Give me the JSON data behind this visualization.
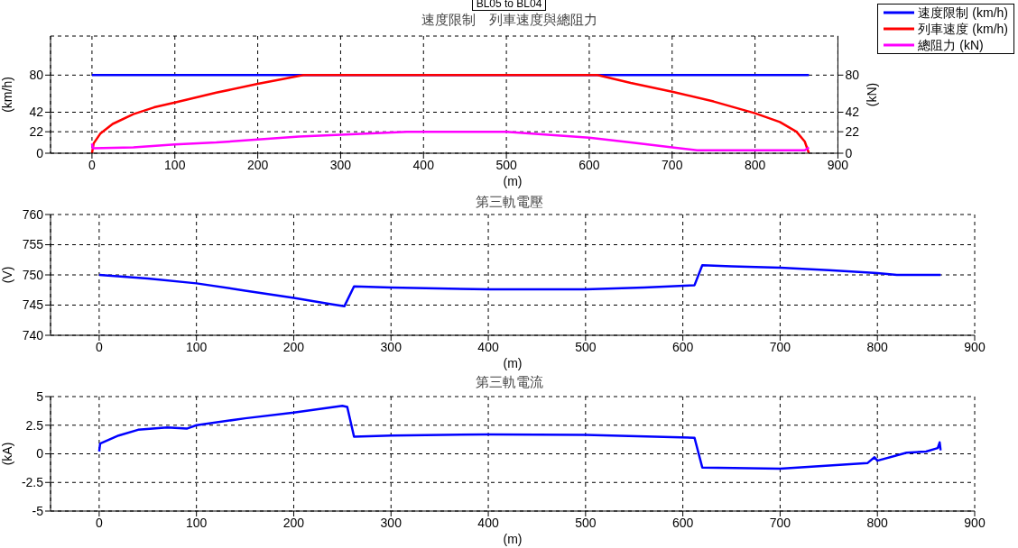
{
  "chart_data": [
    {
      "type": "line",
      "title": "速度限制　列車速度與總阻力",
      "annotations": [
        "BL05 to BL04"
      ],
      "xlabel": "(m)",
      "ylabel": "(km/h)",
      "y2label": "(kN)",
      "xlim": [
        -50,
        900
      ],
      "xticks": [
        0,
        100,
        200,
        300,
        400,
        500,
        600,
        700,
        800,
        900
      ],
      "ylim": [
        0,
        120
      ],
      "yticks": [
        0,
        22,
        42,
        80
      ],
      "y2lim": [
        0,
        120
      ],
      "y2ticks": [
        0,
        22,
        42,
        80
      ],
      "grid": true,
      "legend": "top right",
      "marker": "none",
      "line_style": "solid",
      "series": [
        {
          "name": "速度限制 (km/h)",
          "color": "#0000ff",
          "x": [
            0,
            865
          ],
          "values": [
            80,
            80
          ]
        },
        {
          "name": "列車速度 (km/h)",
          "color": "#ff0000",
          "x": [
            0,
            2,
            10,
            25,
            50,
            75,
            100,
            150,
            200,
            230,
            255,
            610,
            650,
            700,
            750,
            800,
            830,
            850,
            860,
            865
          ],
          "values": [
            0,
            10,
            20,
            30,
            40,
            47,
            52,
            62,
            71,
            76,
            80,
            80,
            72,
            63,
            53,
            41,
            32,
            22,
            12,
            0
          ]
        },
        {
          "name": "總阻力 (kN)",
          "color": "#ff00ff",
          "axis": "y2",
          "x": [
            0,
            1,
            50,
            100,
            150,
            200,
            250,
            300,
            380,
            440,
            500,
            550,
            600,
            650,
            700,
            730,
            800,
            860,
            865
          ],
          "values": [
            10,
            5,
            6,
            9,
            11,
            14,
            17,
            19,
            22,
            22,
            22,
            19,
            16,
            11,
            6,
            3,
            3,
            3,
            6
          ]
        }
      ]
    },
    {
      "type": "line",
      "title": "第三軌電壓",
      "xlabel": "(m)",
      "ylabel": "(V)",
      "xlim": [
        -50,
        900
      ],
      "xticks": [
        0,
        100,
        200,
        300,
        400,
        500,
        600,
        700,
        800,
        900
      ],
      "ylim": [
        740,
        760
      ],
      "yticks": [
        740,
        745,
        750,
        755,
        760
      ],
      "grid": true,
      "marker": "none",
      "line_style": "solid",
      "series": [
        {
          "color": "#0000ff",
          "x": [
            0,
            50,
            100,
            150,
            200,
            240,
            252,
            262,
            300,
            400,
            500,
            560,
            612,
            620,
            650,
            700,
            750,
            800,
            820,
            865
          ],
          "values": [
            750,
            749.4,
            748.6,
            747.4,
            746.2,
            745.1,
            744.8,
            748.1,
            747.9,
            747.6,
            747.6,
            747.9,
            748.3,
            751.6,
            751.4,
            751.2,
            750.8,
            750.3,
            750,
            750
          ]
        }
      ]
    },
    {
      "type": "line",
      "title": "第三軌電流",
      "xlabel": "(m)",
      "ylabel": "(kA)",
      "xlim": [
        -50,
        900
      ],
      "xticks": [
        0,
        100,
        200,
        300,
        400,
        500,
        600,
        700,
        800,
        900
      ],
      "ylim": [
        -5,
        5
      ],
      "yticks": [
        -5,
        -2.5,
        0,
        2.5,
        5
      ],
      "grid": true,
      "marker": "none",
      "line_style": "solid",
      "series": [
        {
          "color": "#0000ff",
          "x": [
            0,
            1,
            20,
            40,
            70,
            90,
            100,
            150,
            200,
            250,
            255,
            262,
            300,
            400,
            500,
            612,
            620,
            700,
            790,
            797,
            800,
            830,
            850,
            862,
            864,
            865
          ],
          "values": [
            0.2,
            0.9,
            1.6,
            2.1,
            2.3,
            2.2,
            2.5,
            3.1,
            3.6,
            4.2,
            4.1,
            1.5,
            1.6,
            1.7,
            1.65,
            1.4,
            -1.2,
            -1.3,
            -0.8,
            -0.3,
            -0.6,
            0.1,
            0.2,
            0.5,
            1,
            0.3
          ]
        }
      ]
    }
  ]
}
